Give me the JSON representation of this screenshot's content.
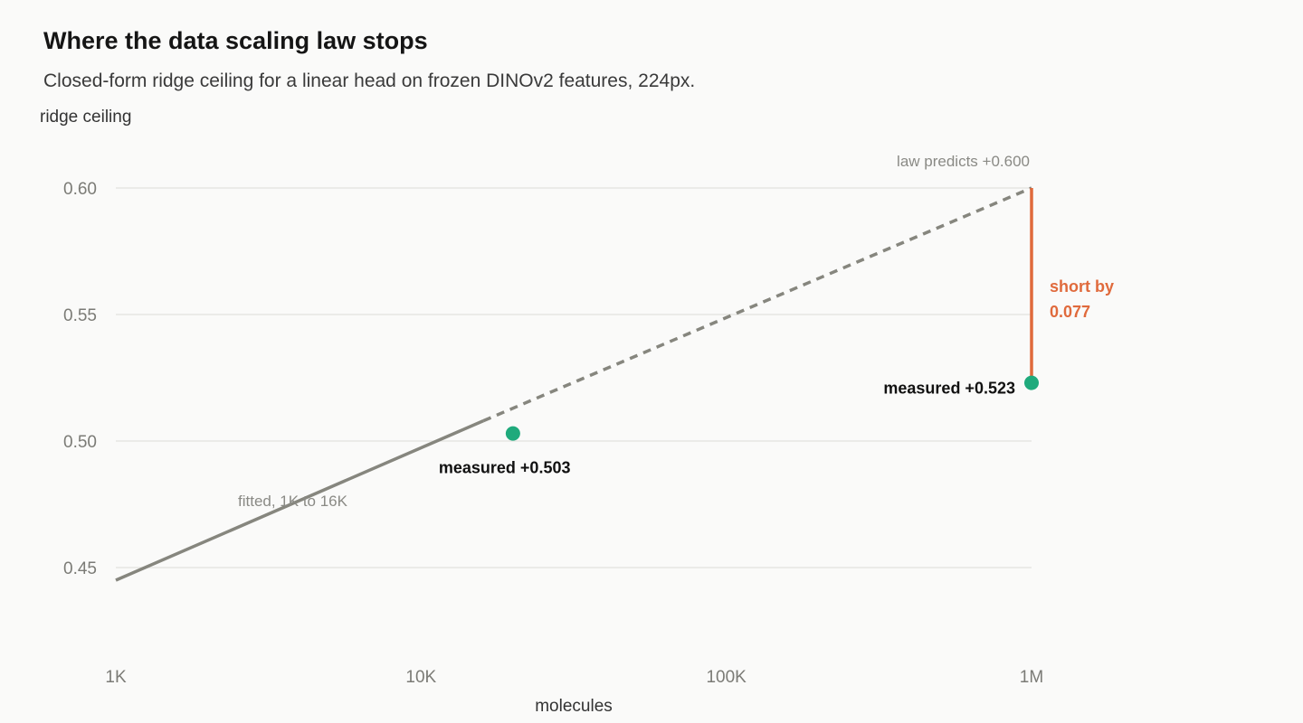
{
  "title": "Where the data scaling law stops",
  "subtitle": "Closed-form ridge ceiling for a linear head on frozen DINOv2 features, 224px.",
  "colors": {
    "fit_line": "#86867e",
    "measured_point": "#1faa7c",
    "gap": "#e06a3c",
    "grid": "#e6e6e3"
  },
  "chart_data": {
    "type": "line",
    "title": "Where the data scaling law stops",
    "subtitle": "Closed-form ridge ceiling for a linear head on frozen DINOv2 features, 224px.",
    "xlabel": "molecules",
    "ylabel": "ridge ceiling",
    "xscale": "log",
    "xlim": [
      1000,
      1000000
    ],
    "ylim": [
      0.42,
      0.62
    ],
    "grid": "horizontal",
    "x_ticks": [
      {
        "value": 1000,
        "label": "1K"
      },
      {
        "value": 10000,
        "label": "10K"
      },
      {
        "value": 100000,
        "label": "100K"
      },
      {
        "value": 1000000,
        "label": "1M"
      }
    ],
    "y_ticks": [
      {
        "value": 0.45,
        "label": "0.45"
      },
      {
        "value": 0.5,
        "label": "0.50"
      },
      {
        "value": 0.55,
        "label": "0.55"
      },
      {
        "value": 0.6,
        "label": "0.60"
      }
    ],
    "fit": {
      "label": "fitted, 1K to 16K",
      "fitted": {
        "x": [
          1000,
          16000
        ],
        "y": [
          0.445,
          0.508
        ]
      },
      "extrapolated": {
        "x": [
          16000,
          1000000
        ],
        "y": [
          0.508,
          0.6
        ]
      }
    },
    "measured": [
      {
        "x": 20000,
        "y": 0.503,
        "label": "measured +0.503"
      },
      {
        "x": 1000000,
        "y": 0.523,
        "label": "measured +0.523"
      }
    ],
    "prediction": {
      "x": 1000000,
      "y": 0.6,
      "label": "law predicts +0.600"
    },
    "gap": {
      "x": 1000000,
      "from": 0.523,
      "to": 0.6,
      "label_line1": "short by",
      "label_line2": "0.077"
    }
  }
}
